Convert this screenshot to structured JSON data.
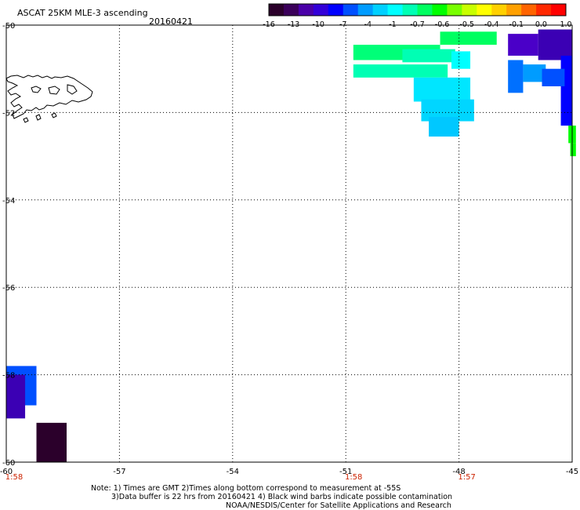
{
  "header": {
    "title": "ASCAT 25KM MLE-3 ascending",
    "date": "20160421"
  },
  "colorbar": {
    "colors": [
      "#2b002b",
      "#3b005a",
      "#4a00a8",
      "#3300d8",
      "#0000ff",
      "#0050ff",
      "#009cff",
      "#00d0ff",
      "#00ffff",
      "#00ffb4",
      "#00ff60",
      "#00ff00",
      "#78ff00",
      "#c8ff00",
      "#ffff00",
      "#ffd000",
      "#ffa000",
      "#ff6400",
      "#ff2800",
      "#ff0000"
    ],
    "labels": [
      "-16",
      "-13",
      "-10",
      "-7",
      "-4",
      "-1",
      "-0.7",
      "-0.6",
      "-0.5",
      "-0.4",
      "-0.1",
      "0.0",
      "1.0"
    ]
  },
  "axes": {
    "x_ticks": [
      "-60",
      "-57",
      "-54",
      "-51",
      "-48",
      "-45"
    ],
    "y_ticks": [
      "-50",
      "-52",
      "-54",
      "-56",
      "-58",
      "-60"
    ],
    "x_range": [
      -60,
      -45
    ],
    "y_range": [
      -60,
      -50
    ],
    "time_labels": [
      {
        "lon": -60,
        "text": "1:58"
      },
      {
        "lon": -51,
        "text": "1:58"
      },
      {
        "lon": -48,
        "text": "1:57"
      }
    ],
    "time_color": "#cc2200"
  },
  "cells": [
    {
      "lon": -50.8,
      "lat": -50.45,
      "w": 2.3,
      "h": 0.35,
      "color": "#00ff78"
    },
    {
      "lon": -48.5,
      "lat": -50.15,
      "w": 1.5,
      "h": 0.3,
      "color": "#00ff60"
    },
    {
      "lon": -49.5,
      "lat": -50.55,
      "w": 1.4,
      "h": 0.3,
      "color": "#00ffb4"
    },
    {
      "lon": -50.8,
      "lat": -50.9,
      "w": 2.5,
      "h": 0.3,
      "color": "#00ffb4"
    },
    {
      "lon": -49.2,
      "lat": -51.2,
      "w": 1.5,
      "h": 0.55,
      "color": "#00e6ff"
    },
    {
      "lon": -49.0,
      "lat": -51.7,
      "w": 1.4,
      "h": 0.5,
      "color": "#00d6ff"
    },
    {
      "lon": -48.8,
      "lat": -52.1,
      "w": 0.8,
      "h": 0.45,
      "color": "#00c8ff"
    },
    {
      "lon": -48.2,
      "lat": -50.6,
      "w": 0.5,
      "h": 0.4,
      "color": "#00ffff"
    },
    {
      "lon": -46.7,
      "lat": -50.2,
      "w": 0.8,
      "h": 0.5,
      "color": "#4a00c8"
    },
    {
      "lon": -46.7,
      "lat": -50.8,
      "w": 0.4,
      "h": 0.75,
      "color": "#0070ff"
    },
    {
      "lon": -46.3,
      "lat": -50.9,
      "w": 0.6,
      "h": 0.4,
      "color": "#009cff"
    },
    {
      "lon": -45.9,
      "lat": -50.1,
      "w": 0.9,
      "h": 0.7,
      "color": "#3b00b4"
    },
    {
      "lon": -45.3,
      "lat": -50.7,
      "w": 0.3,
      "h": 1.6,
      "color": "#0000ff"
    },
    {
      "lon": -45.8,
      "lat": -51.0,
      "w": 0.6,
      "h": 0.4,
      "color": "#0050ff"
    },
    {
      "lon": -45.1,
      "lat": -52.3,
      "w": 0.2,
      "h": 0.4,
      "color": "#00ff00"
    },
    {
      "lon": -45.05,
      "lat": -52.7,
      "w": 0.15,
      "h": 0.3,
      "color": "#00ff00"
    },
    {
      "lon": -60.0,
      "lat": -57.8,
      "w": 0.8,
      "h": 0.9,
      "color": "#0050ff"
    },
    {
      "lon": -60.0,
      "lat": -58.0,
      "w": 0.5,
      "h": 1.0,
      "color": "#3b00b4"
    },
    {
      "lon": -59.2,
      "lat": -59.1,
      "w": 0.8,
      "h": 0.9,
      "color": "#2b002b"
    }
  ],
  "notes": {
    "line1": "Note: 1) Times are GMT 2)Times along bottom correspond to measurement at -55S",
    "line2": "3)Data buffer is 22 hrs from 20160421 4) Black wind barbs indicate possible contamination",
    "credit": "NOAA/NESDIS/Center for Satellite Applications and Research"
  }
}
